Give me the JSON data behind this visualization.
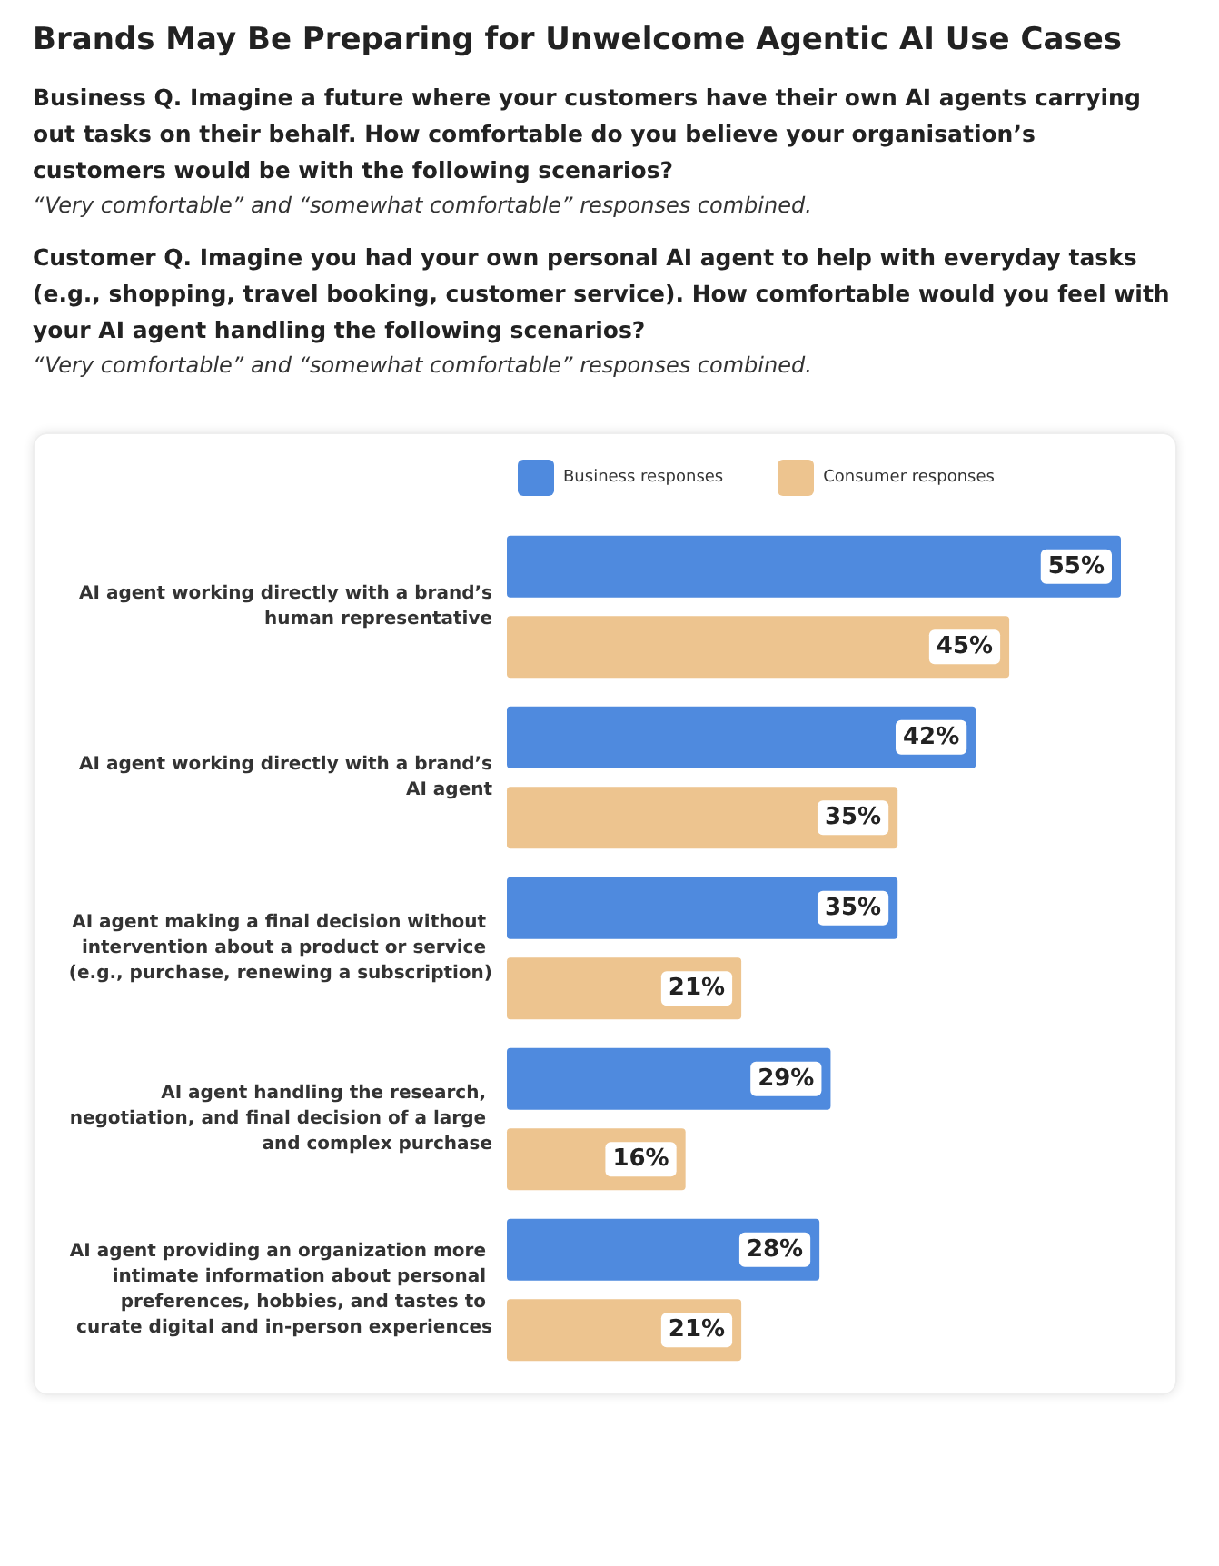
{
  "chart_data": {
    "type": "bar",
    "orientation": "horizontal",
    "title": "Brands May Be Preparing for Unwelcome Agentic AI Use Cases",
    "subtitle": "Business Q. Imagine a future where your customers have their own AI agents carrying out tasks on their behalf. How comfortable do you believe your organisation’s customers would be with the following scenarios?",
    "annotations": [
      "“Very comfortable” and “somewhat comfortable” responses combined.",
      "Customer Q. Imagine you had your own personal AI agent to help with everyday tasks (e.g., shopping, travel booking, customer service). How comfortable would you feel with your AI agent handling the following scenarios?",
      "“Very comfortable” and “somewhat comfortable” responses combined."
    ],
    "categories": [
      "AI agent working directly with a brand’s human representative",
      "AI agent working directly with a brand’s AI agent",
      "AI agent making a final decision without intervention about a product or service (e.g., purchase, renewing a subscription)",
      "AI agent handling the research, negotiation, and final decision of a large and complex purchase",
      "AI agent providing an organization more intimate information about personal preferences, hobbies, and tastes to curate digital and in-person experiences"
    ],
    "series": [
      {
        "name": "Business responses",
        "color": "#4f8ade",
        "values": [
          55,
          42,
          35,
          29,
          28
        ],
        "value_labels": [
          "55%",
          "42%",
          "35%",
          "29%",
          "28%"
        ]
      },
      {
        "name": "Consumer responses",
        "color": "#edc48f",
        "values": [
          45,
          35,
          21,
          16,
          21
        ],
        "value_labels": [
          "45%",
          "35%",
          "21%",
          "16%",
          "21%"
        ]
      }
    ],
    "legend": "top",
    "tick_labels": "y"
  }
}
